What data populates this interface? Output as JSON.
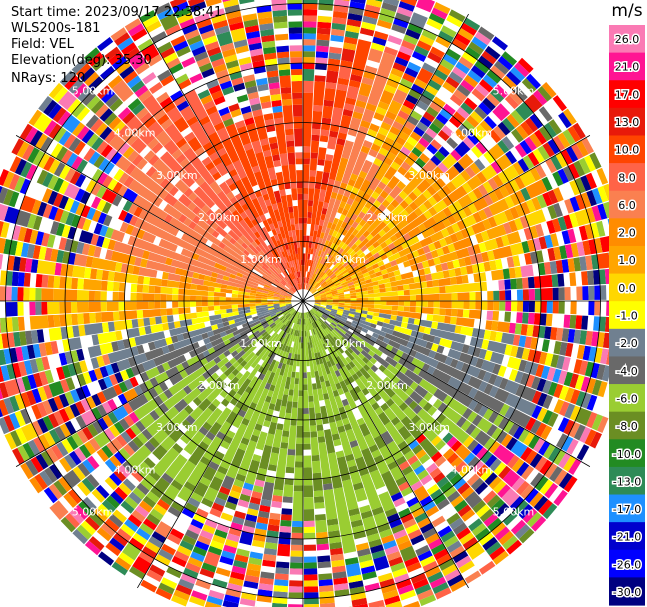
{
  "info": {
    "start_time": "Start time: 2023/09/17 22:38:41",
    "station": "WLS200s-181",
    "field": "Field: VEL",
    "elevation": "Elevation(deg): 35.30",
    "nrays": "NRays: 120"
  },
  "chart_data": {
    "type": "heatmap",
    "projection": "polar-ppi",
    "field": "VEL",
    "units": "m/s",
    "n_rays": 120,
    "max_range_km": 5.5,
    "range_rings_km": [
      1,
      2,
      3,
      4,
      5
    ],
    "ring_labels": [
      "1.00km",
      "2.00km",
      "3.00km",
      "4.00km",
      "5.00km"
    ],
    "spokes_deg": [
      0,
      30,
      60,
      90,
      120,
      150,
      180,
      210,
      240,
      270,
      300,
      330
    ],
    "dominant_pattern": [
      {
        "sector": "north-west",
        "velocity_ms": 8
      },
      {
        "sector": "north-east",
        "velocity_ms": 1
      },
      {
        "sector": "south",
        "velocity_ms": -7
      },
      {
        "sector": "outer-ranges",
        "noise": true
      }
    ],
    "colorbar": {
      "title": "m/s",
      "ticks": [
        "26.0",
        "21.0",
        "17.0",
        "13.0",
        "10.0",
        "8.0",
        "6.0",
        "2.0",
        "1.0",
        "0.0",
        "-1.0",
        "-2.0",
        "-4.0",
        "-6.0",
        "-8.0",
        "-10.0",
        "-13.0",
        "-17.0",
        "-21.0",
        "-26.0",
        "-30.0"
      ],
      "colors": [
        "#fa7ab4",
        "#ff1493",
        "#ff0000",
        "#e81a0a",
        "#ff4500",
        "#ff6347",
        "#fa8050",
        "#ff8c00",
        "#ffa500",
        "#ffd700",
        "#ffff00",
        "#708090",
        "#696969",
        "#9acd32",
        "#6b8e23",
        "#228b22",
        "#2e8b57",
        "#1e90ff",
        "#0000cd",
        "#0000ff",
        "#000080"
      ]
    }
  }
}
